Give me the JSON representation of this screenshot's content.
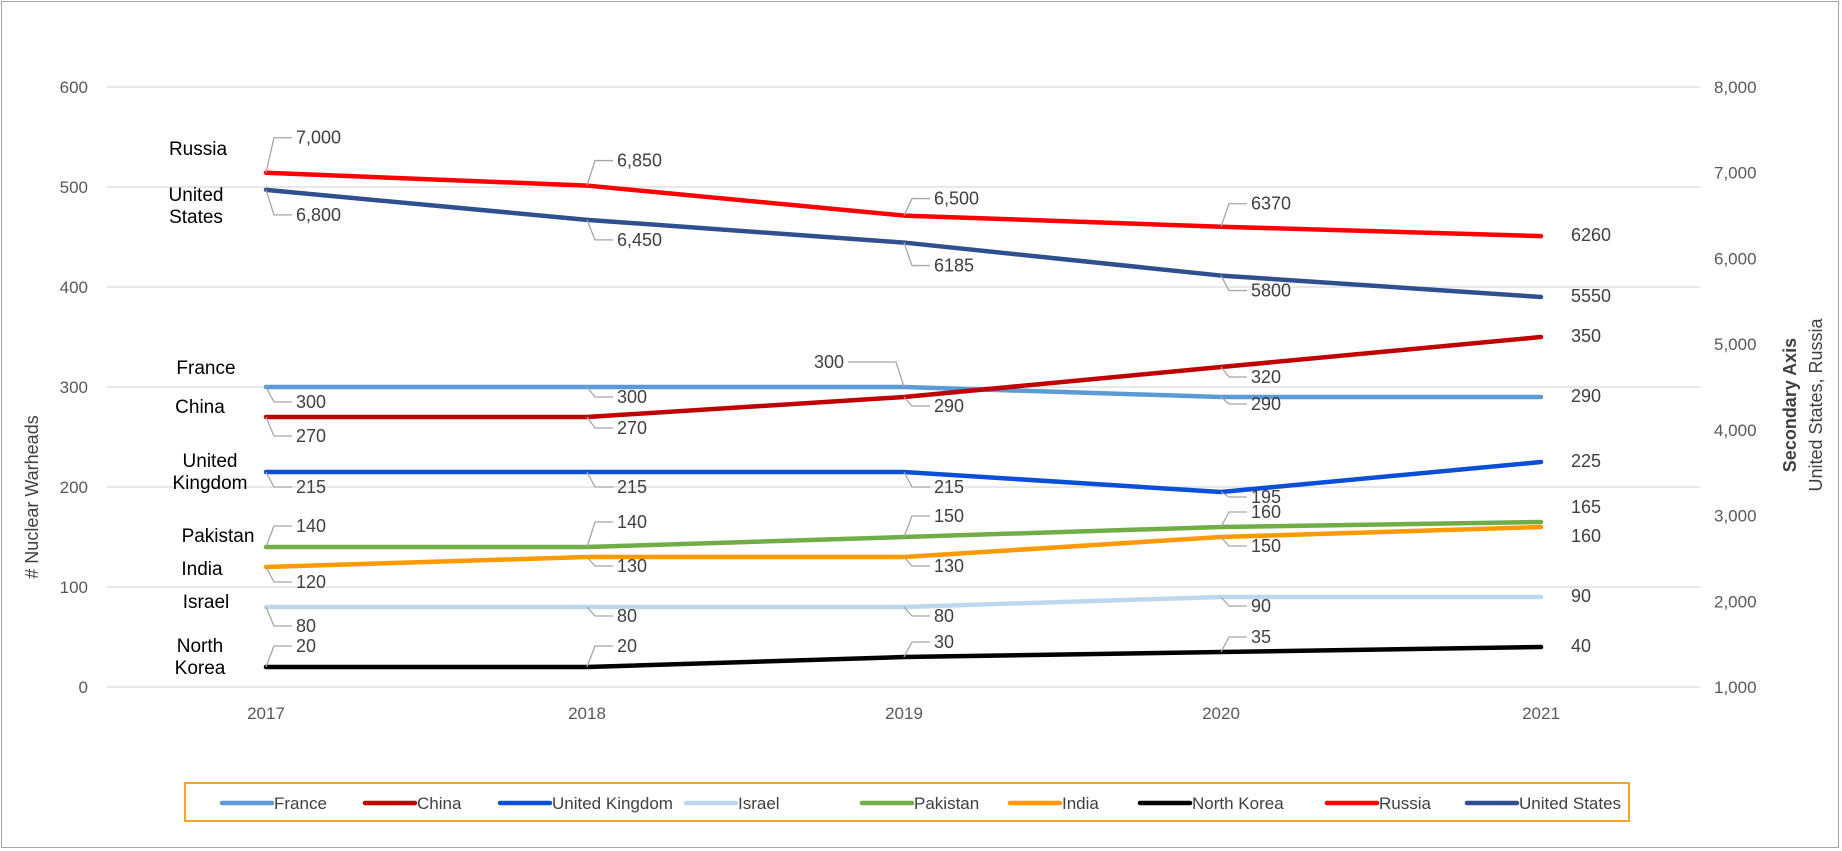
{
  "chart_data": {
    "type": "line",
    "title": "",
    "xlabel": "",
    "ylabel": "# Nuclear Warheads",
    "y2label_line1": "Secondary Axis",
    "y2label_line2": "United States, Russia",
    "categories": [
      "2017",
      "2018",
      "2019",
      "2020",
      "2021"
    ],
    "ylim": [
      0,
      600
    ],
    "y2lim": [
      1000,
      8000
    ],
    "yticks": [
      "0",
      "100",
      "200",
      "300",
      "400",
      "500",
      "600"
    ],
    "y2ticks": [
      "1,000",
      "2,000",
      "3,000",
      "4,000",
      "5,000",
      "6,000",
      "7,000",
      "8,000"
    ],
    "grid": true,
    "legend_position": "bottom",
    "legend_border_color": "#f5a623",
    "series": [
      {
        "name": "France",
        "axis": "primary",
        "color": "#5b9bd5",
        "values": [
          300,
          300,
          300,
          290,
          290
        ],
        "labels": [
          "300",
          "300",
          "300",
          "290",
          "290"
        ],
        "display_name": [
          "France"
        ]
      },
      {
        "name": "China",
        "axis": "primary",
        "color": "#c00000",
        "values": [
          270,
          270,
          290,
          320,
          350
        ],
        "labels": [
          "270",
          "270",
          "290",
          "320",
          "350"
        ],
        "display_name": [
          "China"
        ]
      },
      {
        "name": "United Kingdom",
        "axis": "primary",
        "color": "#0b4fd6",
        "values": [
          215,
          215,
          215,
          195,
          225
        ],
        "labels": [
          "215",
          "215",
          "215",
          "195",
          "225"
        ],
        "display_name": [
          "United",
          "Kingdom"
        ]
      },
      {
        "name": "Israel",
        "axis": "primary",
        "color": "#bdd7ee",
        "values": [
          80,
          80,
          80,
          90,
          90
        ],
        "labels": [
          "80",
          "80",
          "80",
          "90",
          "90"
        ],
        "display_name": [
          "Israel"
        ]
      },
      {
        "name": "Pakistan",
        "axis": "primary",
        "color": "#70ad47",
        "values": [
          140,
          140,
          150,
          160,
          165
        ],
        "labels": [
          "140",
          "140",
          "150",
          "160",
          "165"
        ],
        "display_name": [
          "Pakistan"
        ]
      },
      {
        "name": "India",
        "axis": "primary",
        "color": "#ff9900",
        "values": [
          120,
          130,
          130,
          150,
          160
        ],
        "labels": [
          "120",
          "130",
          "130",
          "150",
          "160"
        ],
        "display_name": [
          "India"
        ]
      },
      {
        "name": "North Korea",
        "axis": "primary",
        "color": "#000000",
        "values": [
          20,
          20,
          30,
          35,
          40
        ],
        "labels": [
          "20",
          "20",
          "30",
          "35",
          "40"
        ],
        "display_name": [
          "North",
          "Korea"
        ]
      },
      {
        "name": "Russia",
        "axis": "secondary",
        "color": "#ff0000",
        "values": [
          7000,
          6850,
          6500,
          6370,
          6260
        ],
        "labels": [
          "7,000",
          "6,850",
          "6,500",
          "6370",
          "6260"
        ],
        "display_name": [
          "Russia"
        ]
      },
      {
        "name": "United States",
        "axis": "secondary",
        "color": "#2f4f8f",
        "values": [
          6800,
          6450,
          6185,
          5800,
          5550
        ],
        "labels": [
          "6,800",
          "6,450",
          "6185",
          "5800",
          "5550"
        ],
        "display_name": [
          "United",
          "States"
        ]
      }
    ]
  }
}
